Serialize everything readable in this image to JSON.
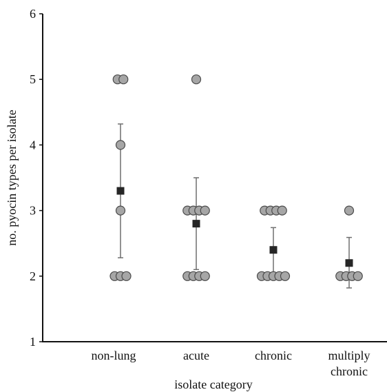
{
  "chart_data": {
    "type": "scatter",
    "title": "",
    "xlabel": "isolate category",
    "ylabel": "no. pyocin types per isolate",
    "ylim": [
      1,
      6
    ],
    "yticks": [
      "1",
      "2",
      "3",
      "4",
      "5",
      "6"
    ],
    "grid": false,
    "categories": [
      {
        "lines": [
          "non-lung"
        ]
      },
      {
        "lines": [
          "acute"
        ]
      },
      {
        "lines": [
          "chronic"
        ]
      },
      {
        "lines": [
          "multiply",
          "chronic"
        ]
      }
    ],
    "points": [
      [
        5,
        5,
        4,
        3,
        2,
        2,
        2
      ],
      [
        5,
        3,
        3,
        3,
        3,
        2,
        2,
        2,
        2
      ],
      [
        3,
        3,
        3,
        3,
        2,
        2,
        2,
        2,
        2
      ],
      [
        3,
        2,
        2,
        2,
        2
      ]
    ],
    "means": [
      3.3,
      2.8,
      2.4,
      2.2
    ],
    "error_low": [
      2.28,
      2.1,
      2.05,
      1.82
    ],
    "error_high": [
      4.32,
      3.5,
      2.74,
      2.59
    ],
    "colors": {
      "point_fill": "#a6a6a6",
      "point_stroke": "#4a4a4a",
      "mean_marker": "#262626",
      "error_bar": "#6f6f6f",
      "axis": "#111111"
    }
  }
}
